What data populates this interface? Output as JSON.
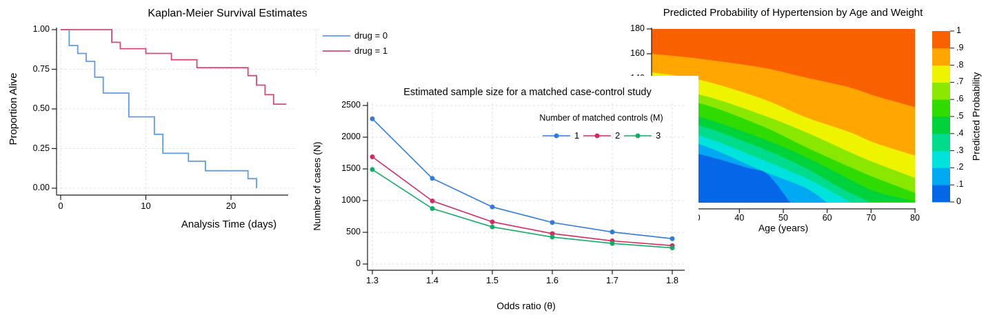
{
  "page": {
    "background": "#ffffff"
  },
  "chart_data": [
    {
      "id": "km",
      "type": "step-line",
      "title": "Kaplan-Meier Survival Estimates",
      "xlabel": "Analysis Time (days)",
      "ylabel": "Proportion Alive",
      "xlim": [
        0,
        30
      ],
      "ylim": [
        0,
        1
      ],
      "grid": true,
      "x_ticks": [
        {
          "v": 0,
          "label": "0"
        },
        {
          "v": 10,
          "label": "10"
        },
        {
          "v": 20,
          "label": "20"
        }
      ],
      "grid_x": [
        0,
        10,
        20,
        30
      ],
      "y_ticks": [
        {
          "v": 1.0,
          "label": "1.00"
        },
        {
          "v": 0.75,
          "label": "0.75"
        },
        {
          "v": 0.5,
          "label": "0.50"
        },
        {
          "v": 0.25,
          "label": "0.25"
        },
        {
          "v": 0.0,
          "label": "0.00"
        }
      ],
      "legend_position": "top-right-outside",
      "series": [
        {
          "name": "drug = 0",
          "color": "#5C9CE6",
          "end": 23,
          "steps": [
            [
              0,
              1.0
            ],
            [
              1,
              0.9
            ],
            [
              2,
              0.85
            ],
            [
              3,
              0.8
            ],
            [
              4,
              0.7
            ],
            [
              5,
              0.6
            ],
            [
              8,
              0.45
            ],
            [
              11,
              0.34
            ],
            [
              12,
              0.22
            ],
            [
              15,
              0.17
            ],
            [
              17,
              0.11
            ],
            [
              22,
              0.06
            ],
            [
              23,
              0.0
            ]
          ]
        },
        {
          "name": "drug = 1",
          "color": "#D84A72",
          "end": 26.5,
          "steps": [
            [
              0,
              1.0
            ],
            [
              6,
              0.92
            ],
            [
              7,
              0.88
            ],
            [
              10,
              0.85
            ],
            [
              13,
              0.81
            ],
            [
              16,
              0.76
            ],
            [
              22,
              0.71
            ],
            [
              23,
              0.65
            ],
            [
              24,
              0.59
            ],
            [
              25,
              0.53
            ]
          ]
        }
      ]
    },
    {
      "id": "sample_size",
      "type": "line",
      "title": "Estimated sample size for a matched case-control study",
      "xlabel": "Odds ratio (θ)",
      "ylabel": "Number of cases (N)",
      "legend_title": "Number of matched controls (M)",
      "x": [
        1.3,
        1.4,
        1.5,
        1.6,
        1.7,
        1.8
      ],
      "x_tick_labels": [
        "1.3",
        "1.4",
        "1.5",
        "1.6",
        "1.7",
        "1.8"
      ],
      "y_ticks": [
        0,
        500,
        1000,
        1500,
        2000,
        2500
      ],
      "ylim": [
        0,
        2500
      ],
      "grid": true,
      "series": [
        {
          "name": "1",
          "color": "#2F7BE0",
          "values": [
            2290,
            1350,
            900,
            655,
            505,
            400
          ]
        },
        {
          "name": "2",
          "color": "#D42B5F",
          "values": [
            1690,
            995,
            665,
            480,
            365,
            290
          ]
        },
        {
          "name": "3",
          "color": "#11AD66",
          "values": [
            1490,
            875,
            585,
            425,
            325,
            255
          ]
        }
      ]
    },
    {
      "id": "contour",
      "type": "contour",
      "title": "Predicted Probability of Hypertension by Age and Weight",
      "xlabel": "Age (years)",
      "colorbar_label": "Predicted Probability",
      "xlim": [
        20,
        80
      ],
      "ylim": [
        40,
        180
      ],
      "x_ticks": [
        30,
        40,
        50,
        60,
        70,
        80
      ],
      "y_ticks": [
        180,
        160,
        140
      ],
      "levels": [
        0,
        0.1,
        0.2,
        0.3,
        0.4,
        0.5,
        0.6,
        0.7,
        0.8,
        0.9,
        1
      ],
      "colors": [
        "#0666E8",
        "#00A9F2",
        "#00E3DC",
        "#00DC8C",
        "#00D23C",
        "#30DC00",
        "#8AE800",
        "#EEF400",
        "#FFA600",
        "#F96100"
      ],
      "colorbar_tick_labels": [
        "0",
        ".1",
        ".2",
        ".3",
        ".4",
        ".5",
        ".6",
        ".7",
        ".8",
        ".9",
        "1"
      ],
      "boundaries": [
        {
          "level": 0.1,
          "points": [
            [
              20,
              86
            ],
            [
              31,
              79
            ],
            [
              42,
              68
            ],
            [
              46.4,
              63
            ],
            [
              51.6,
              40
            ]
          ]
        },
        {
          "level": 0.2,
          "points": [
            [
              20,
              94
            ],
            [
              31,
              87
            ],
            [
              45,
              66
            ],
            [
              55,
              52
            ],
            [
              60,
              40
            ]
          ]
        },
        {
          "level": 0.3,
          "points": [
            [
              20,
              101
            ],
            [
              31,
              94
            ],
            [
              45,
              75
            ],
            [
              55,
              60
            ],
            [
              62,
              47
            ],
            [
              65.5,
              40
            ]
          ]
        },
        {
          "level": 0.4,
          "points": [
            [
              20,
              109
            ],
            [
              31,
              102
            ],
            [
              45,
              84
            ],
            [
              55,
              68
            ],
            [
              63,
              52
            ],
            [
              70,
              40
            ]
          ]
        },
        {
          "level": 0.5,
          "points": [
            [
              20,
              116
            ],
            [
              31,
              109
            ],
            [
              45,
              92
            ],
            [
              55,
              77
            ],
            [
              65,
              59
            ],
            [
              71,
              49
            ],
            [
              80,
              41
            ]
          ]
        },
        {
          "level": 0.6,
          "points": [
            [
              20,
              124
            ],
            [
              31,
              120
            ],
            [
              45,
              102
            ],
            [
              55,
              85
            ],
            [
              65,
              69
            ],
            [
              71,
              60
            ],
            [
              80,
              48
            ]
          ]
        },
        {
          "level": 0.7,
          "points": [
            [
              20,
              131
            ],
            [
              31,
              127
            ],
            [
              45,
              111
            ],
            [
              55,
              97
            ],
            [
              65,
              81
            ],
            [
              71,
              72
            ],
            [
              80,
              60
            ]
          ]
        },
        {
          "level": 0.8,
          "points": [
            [
              20,
              145
            ],
            [
              31,
              139
            ],
            [
              45,
              124
            ],
            [
              55,
              109
            ],
            [
              65,
              97
            ],
            [
              71,
              88
            ],
            [
              80,
              78
            ]
          ]
        },
        {
          "level": 0.9,
          "points": [
            [
              20,
              160
            ],
            [
              31,
              156
            ],
            [
              45,
              149
            ],
            [
              55,
              141
            ],
            [
              65,
              133
            ],
            [
              71,
              126
            ],
            [
              80,
              117
            ]
          ]
        }
      ]
    }
  ]
}
